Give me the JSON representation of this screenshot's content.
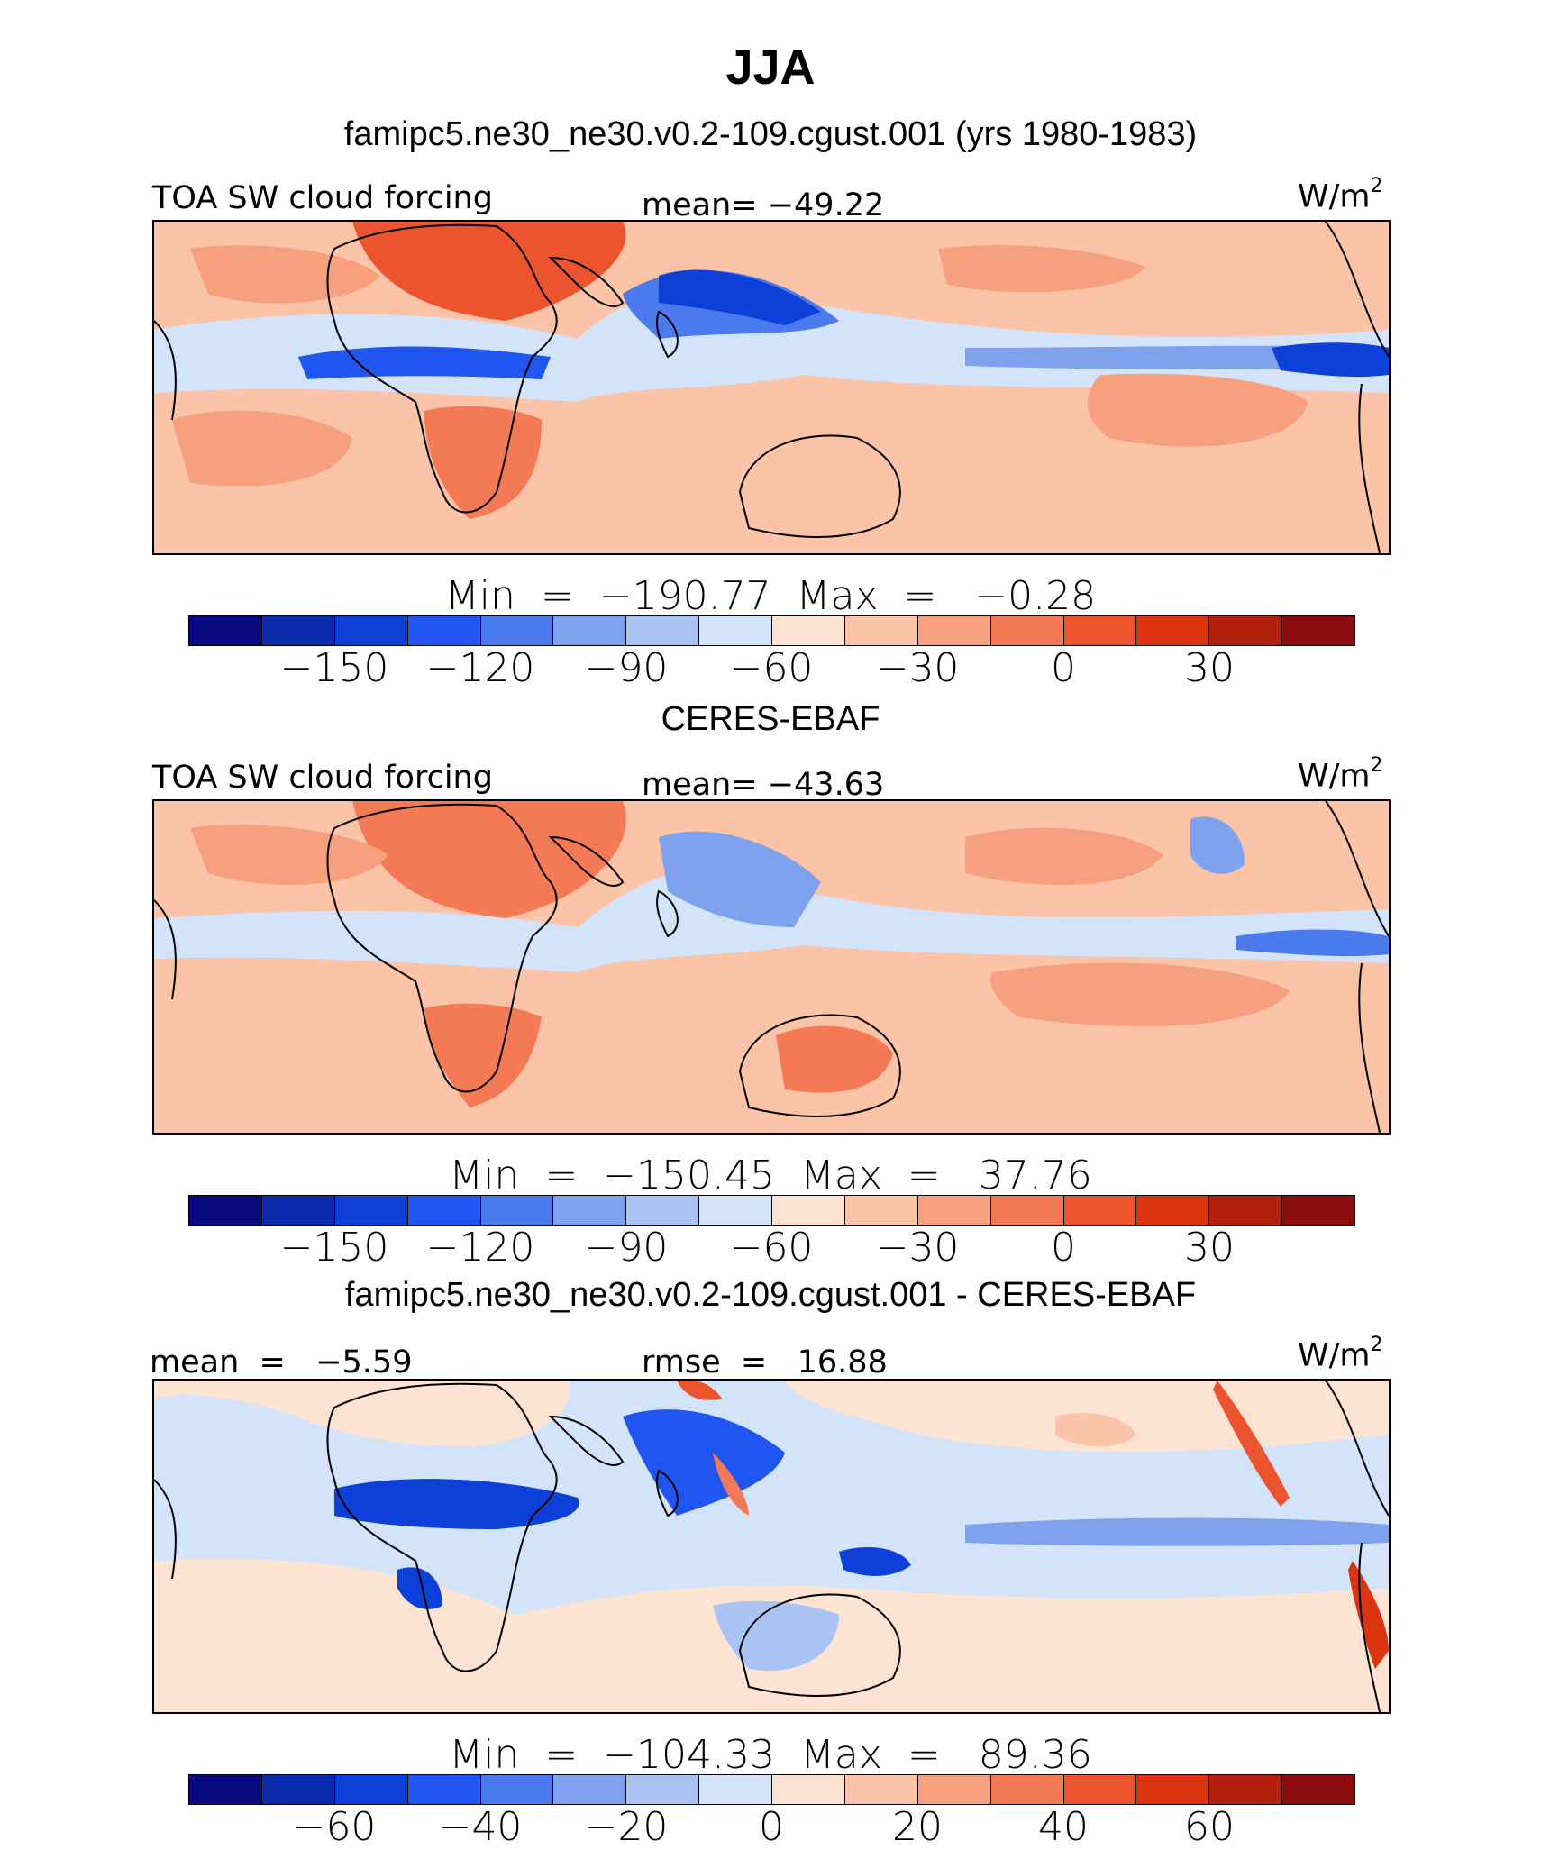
{
  "title": "JJA",
  "panels": [
    {
      "id": "model",
      "header": "famipc5.ne30_ne30.v0.2-109.cgust.001 (yrs 1980-1983)",
      "left_label": "TOA SW cloud forcing",
      "center_label": "mean= −49.22",
      "units": "W/m",
      "units_sup": "2",
      "stats": "Min  =  −190.77  Max  =   −0.28",
      "colorbar_ticks": [
        "−150",
        "−120",
        "−90",
        "−60",
        "−30",
        "0",
        "30"
      ]
    },
    {
      "id": "obs",
      "header": "CERES-EBAF",
      "left_label": "TOA SW cloud forcing",
      "center_label": "mean= −43.63",
      "units": "W/m",
      "units_sup": "2",
      "stats": "Min  =  −150.45  Max  =   37.76",
      "colorbar_ticks": [
        "−150",
        "−120",
        "−90",
        "−60",
        "−30",
        "0",
        "30"
      ]
    },
    {
      "id": "diff",
      "header": "famipc5.ne30_ne30.v0.2-109.cgust.001 - CERES-EBAF",
      "left_label": "mean  =   −5.59",
      "center_label": "rmse  =   16.88",
      "units": "W/m",
      "units_sup": "2",
      "stats": "Min  =  −104.33  Max  =   89.36",
      "colorbar_ticks": [
        "−60",
        "−40",
        "−20",
        "0",
        "20",
        "40",
        "60"
      ]
    }
  ],
  "colorbar_colors": [
    "#0a0a80",
    "#0c2cb0",
    "#0d40d8",
    "#1f55f0",
    "#4a7aec",
    "#7fa2ee",
    "#a9c3f3",
    "#d3e3fa",
    "#fde4d2",
    "#fbc3a8",
    "#f7a07e",
    "#f37a55",
    "#ec5430",
    "#db3411",
    "#b2210d",
    "#8b0d0d"
  ],
  "chart_data": [
    {
      "type": "heatmap",
      "title": "TOA SW cloud forcing",
      "mean": -49.22,
      "min": -190.77,
      "max": -0.28,
      "units": "W/m2",
      "colorbar_levels": [
        -150,
        -120,
        -90,
        -60,
        -30,
        0,
        30
      ]
    },
    {
      "type": "heatmap",
      "title": "TOA SW cloud forcing",
      "mean": -43.63,
      "min": -150.45,
      "max": 37.76,
      "units": "W/m2",
      "colorbar_levels": [
        -150,
        -120,
        -90,
        -60,
        -30,
        0,
        30
      ]
    },
    {
      "type": "heatmap",
      "mean": -5.59,
      "rmse": 16.88,
      "min": -104.33,
      "max": 89.36,
      "units": "W/m2",
      "colorbar_levels": [
        -60,
        -40,
        -20,
        0,
        20,
        40,
        60
      ]
    }
  ]
}
